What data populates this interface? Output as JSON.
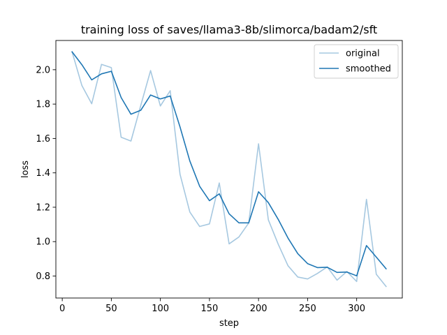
{
  "chart_data": {
    "type": "line",
    "title": "training loss of saves/llama3-8b/slimorca/badam2/sft",
    "xlabel": "step",
    "ylabel": "loss",
    "xlim": [
      -6.5,
      346.5
    ],
    "ylim": [
      0.672,
      2.17
    ],
    "x_ticks": [
      0,
      50,
      100,
      150,
      200,
      250,
      300
    ],
    "y_ticks": [
      0.8,
      1.0,
      1.2,
      1.4,
      1.6,
      1.8,
      2.0
    ],
    "x_tick_labels": [
      "0",
      "50",
      "100",
      "150",
      "200",
      "250",
      "300"
    ],
    "y_tick_labels": [
      "0.8",
      "1.0",
      "1.2",
      "1.4",
      "1.6",
      "1.8",
      "2.0"
    ],
    "grid": false,
    "legend_position": "top-right",
    "x": [
      10,
      20,
      30,
      40,
      50,
      60,
      70,
      80,
      90,
      100,
      110,
      120,
      130,
      140,
      150,
      160,
      170,
      180,
      190,
      200,
      210,
      220,
      230,
      240,
      250,
      260,
      270,
      280,
      290,
      300,
      310,
      320,
      330
    ],
    "series": [
      {
        "name": "original",
        "color": "#a6c8e0",
        "values": [
          2.104,
          1.908,
          1.802,
          2.031,
          2.012,
          1.607,
          1.585,
          1.792,
          1.995,
          1.789,
          1.878,
          1.392,
          1.172,
          1.088,
          1.103,
          1.341,
          0.987,
          1.027,
          1.108,
          1.569,
          1.127,
          0.986,
          0.86,
          0.794,
          0.783,
          0.815,
          0.853,
          0.776,
          0.826,
          0.768,
          1.246,
          0.81,
          0.739
        ]
      },
      {
        "name": "smoothed",
        "color": "#1f77b4",
        "values": [
          2.104,
          2.029,
          1.941,
          1.976,
          1.991,
          1.838,
          1.741,
          1.764,
          1.853,
          1.83,
          1.847,
          1.667,
          1.469,
          1.322,
          1.238,
          1.278,
          1.162,
          1.109,
          1.109,
          1.29,
          1.227,
          1.13,
          1.021,
          0.93,
          0.872,
          0.849,
          0.851,
          0.821,
          0.823,
          0.801,
          0.977,
          0.91,
          0.842
        ]
      }
    ]
  }
}
